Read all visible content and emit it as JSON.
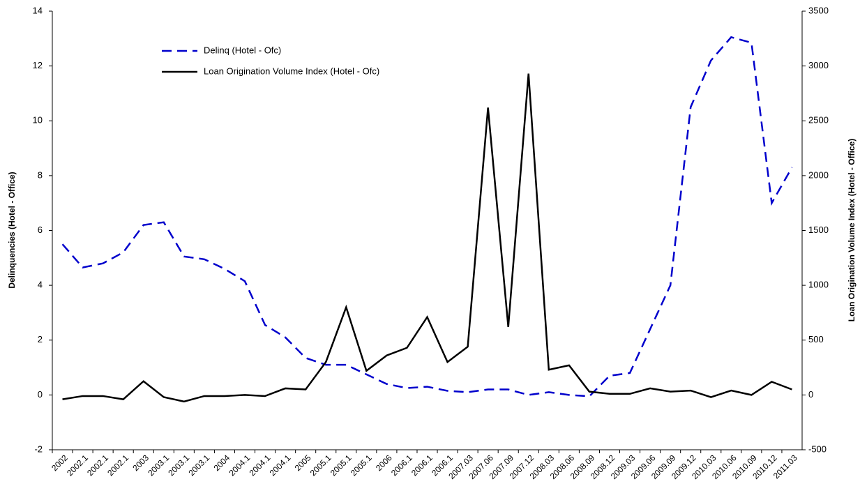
{
  "chart_data": {
    "type": "line",
    "y_label": "Delinquencies (Hotel - Office)",
    "y2_label": "Loan Origination Volume Index (Hotel - Office)",
    "categories": [
      "2002",
      "2002.1",
      "2002.1",
      "2002.1",
      "2003",
      "2003.1",
      "2003.1",
      "2003.1",
      "2004",
      "2004.1",
      "2004.1",
      "2004.1",
      "2005",
      "2005.1",
      "2005.1",
      "2005.1",
      "2006",
      "2006.1",
      "2006.1",
      "2006.1",
      "2007.03",
      "2007.06",
      "2007.09",
      "2007.12",
      "2008.03",
      "2008.06",
      "2008.09",
      "2008.12",
      "2009.03",
      "2009.06",
      "2009.09",
      "2009.12",
      "2010.03",
      "2010.06",
      "2010.09",
      "2010.12",
      "2011.03"
    ],
    "series": [
      {
        "name": "Delinq (Hotel - Ofc)",
        "color": "#0000cc",
        "dashed": true,
        "values": [
          5.5,
          4.65,
          4.8,
          5.2,
          6.2,
          6.3,
          5.05,
          4.95,
          4.6,
          4.15,
          2.55,
          2.1,
          1.35,
          1.1,
          1.1,
          0.75,
          0.4,
          0.25,
          0.3,
          0.15,
          0.1,
          0.2,
          0.2,
          0.0,
          0.1,
          0.0,
          -0.05,
          0.7,
          0.8,
          2.4,
          4.0,
          10.5,
          12.2,
          13.05,
          12.85,
          7.0,
          8.3
        ]
      },
      {
        "name": "Loan Origination Volume Index (Hotel - Ofc)",
        "color": "#000000",
        "dashed": false,
        "axis": "y2",
        "values": [
          -40,
          -10,
          -10,
          -40,
          125,
          -20,
          -60,
          -10,
          -10,
          0,
          -10,
          60,
          50,
          300,
          800,
          220,
          360,
          430,
          710,
          300,
          440,
          2620,
          620,
          2930,
          230,
          270,
          30,
          10,
          10,
          60,
          30,
          40,
          -20,
          40,
          0,
          120,
          50
        ]
      }
    ],
    "ylim": [
      -2,
      14
    ],
    "yticks": [
      -2,
      0,
      2,
      4,
      6,
      8,
      10,
      12,
      14
    ],
    "y2lim": [
      -500,
      3500
    ],
    "y2ticks": [
      -500,
      0,
      500,
      1000,
      1500,
      2000,
      2500,
      3000,
      3500
    ],
    "grid": false,
    "legend": "upper left"
  }
}
